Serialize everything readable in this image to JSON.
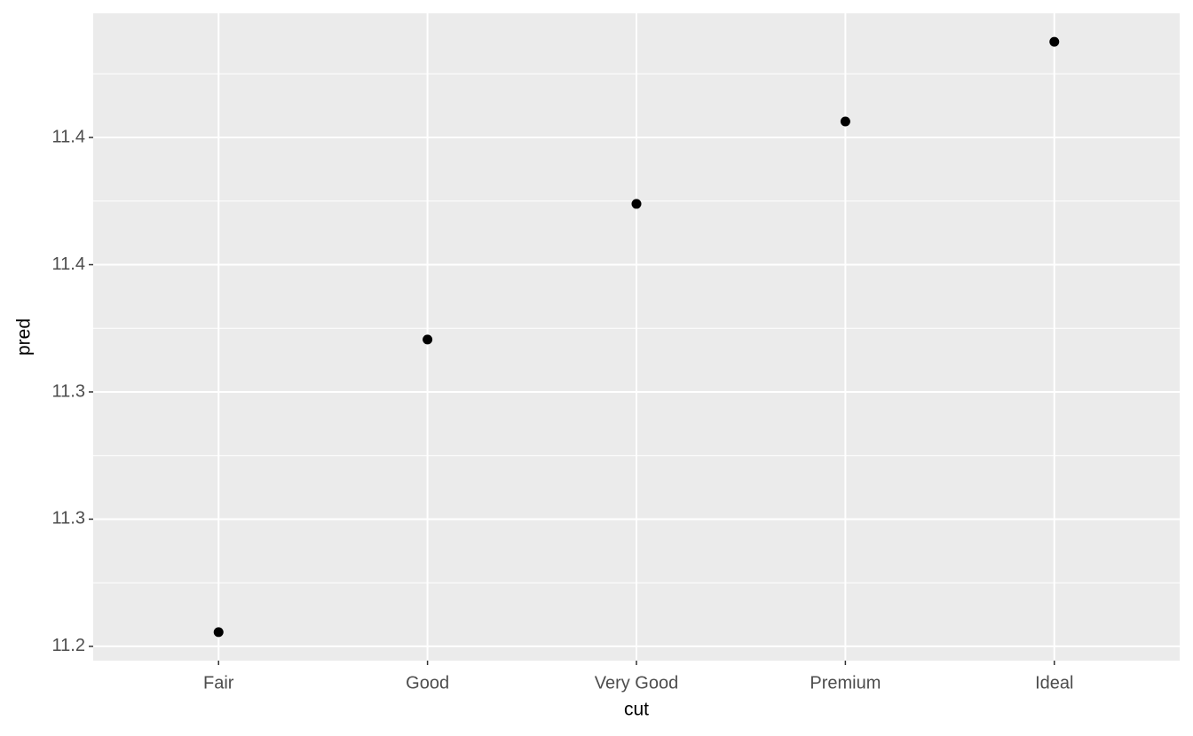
{
  "chart_data": {
    "type": "scatter",
    "x_label": "cut",
    "y_label": "pred",
    "categories": [
      "Fair",
      "Good",
      "Very Good",
      "Premium",
      "Ideal"
    ],
    "values": [
      11.2056,
      11.3206,
      11.3739,
      11.4063,
      11.4376
    ],
    "color": "#000000",
    "ylim": [
      11.1944,
      11.4488
    ],
    "yticks": [
      11.2,
      {
        "value": 11.25,
        "label": "11.3"
      },
      11.3,
      {
        "value": 11.35,
        "label": "11.4"
      },
      11.4
    ],
    "grid": true
  }
}
